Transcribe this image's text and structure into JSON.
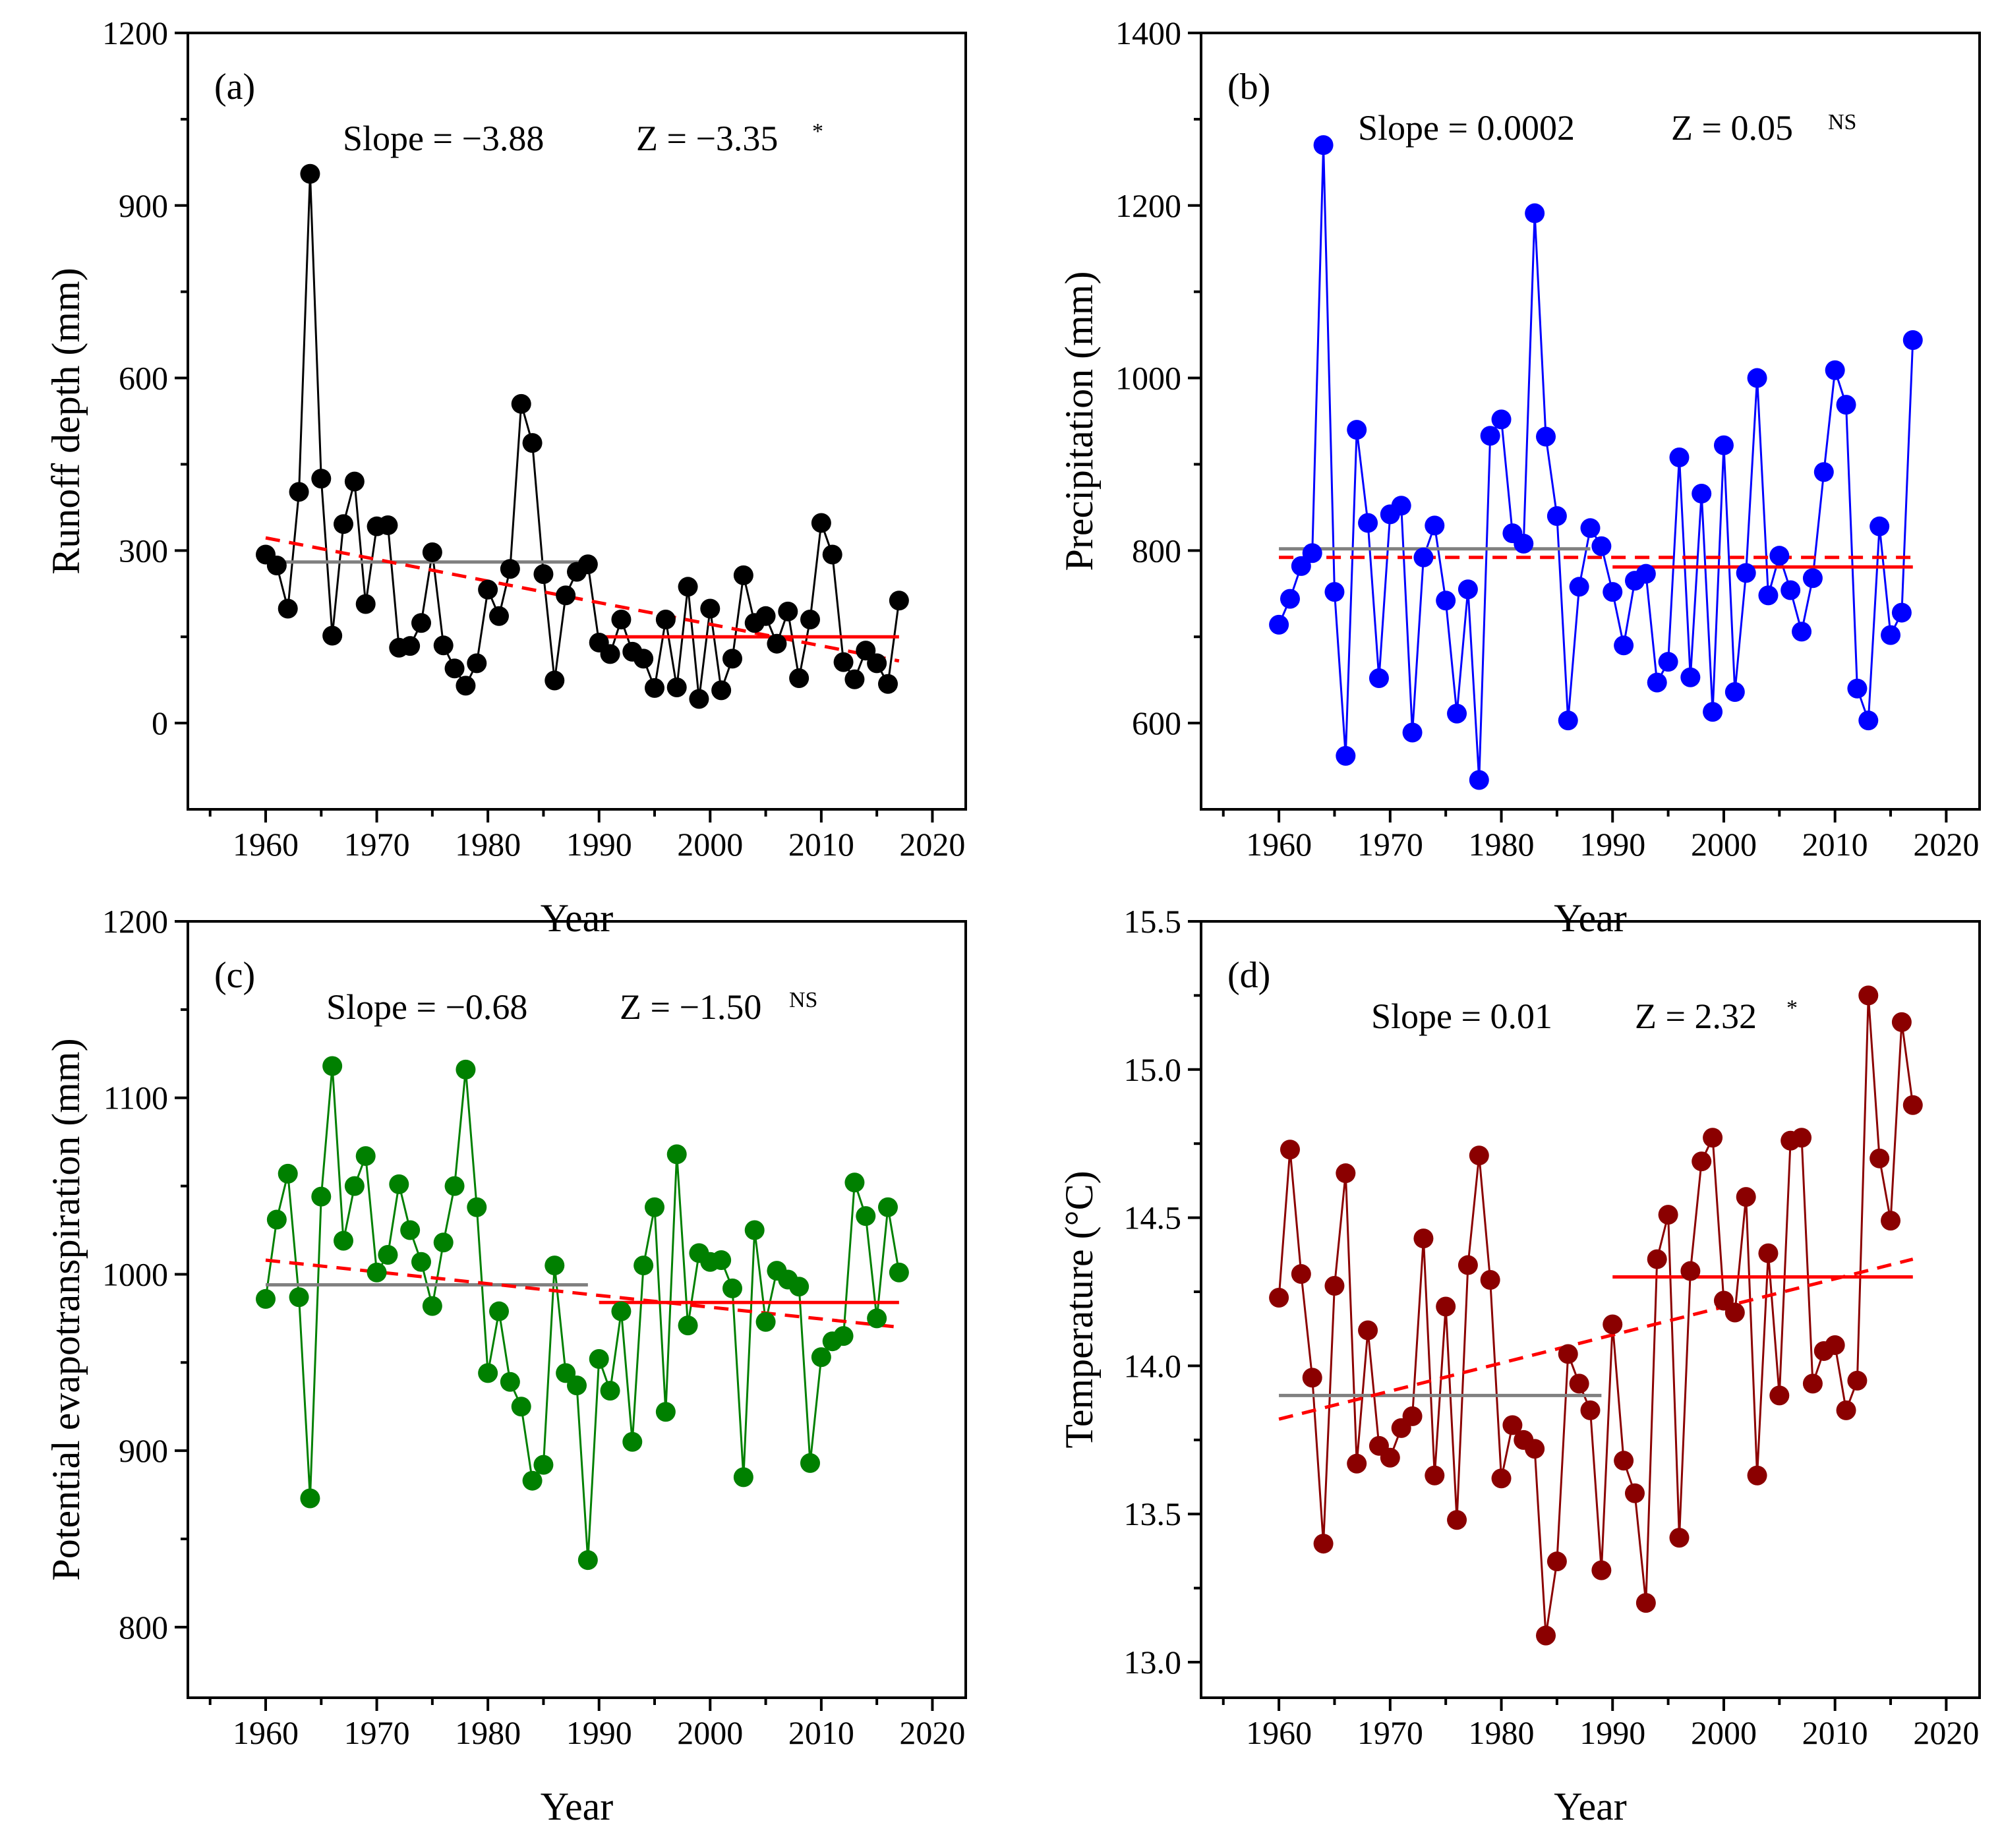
{
  "figure": {
    "xlabel_shared": "Year"
  },
  "chart_data": [
    {
      "id": "a",
      "type": "line",
      "panel_label": "(a)",
      "ylabel": "Runoff depth (mm)",
      "xlabel": "Year",
      "xlim": [
        1953,
        2023
      ],
      "ylim": [
        -150,
        1200
      ],
      "xticks": [
        1960,
        1970,
        1980,
        1990,
        2000,
        2010,
        2020
      ],
      "yticks": [
        0,
        300,
        600,
        900,
        1200
      ],
      "color": "#000000",
      "stats": {
        "slope_text": "Slope = −3.88",
        "z_text": "Z = −3.35",
        "z_sup": "*"
      },
      "series": [
        {
          "name": "Runoff depth",
          "x": [
            1960,
            1961,
            1962,
            1963,
            1964,
            1965,
            1966,
            1967,
            1968,
            1969,
            1970,
            1971,
            1972,
            1973,
            1974,
            1975,
            1976,
            1977,
            1978,
            1979,
            1980,
            1981,
            1982,
            1983,
            1984,
            1985,
            1986,
            1987,
            1988,
            1989,
            1990,
            1991,
            1992,
            1993,
            1994,
            1995,
            1996,
            1997,
            1998,
            1999,
            2000,
            2001,
            2002,
            2003,
            2004,
            2005,
            2006,
            2007,
            2008,
            2009,
            2010,
            2011,
            2012,
            2013,
            2014,
            2015,
            2016,
            2017
          ],
          "values": [
            293,
            274,
            199,
            402,
            955,
            425,
            152,
            346,
            420,
            207,
            342,
            344,
            131,
            134,
            174,
            297,
            135,
            95,
            65,
            104,
            232,
            186,
            268,
            555,
            487,
            259,
            74,
            222,
            263,
            276,
            140,
            120,
            180,
            124,
            112,
            61,
            180,
            62,
            237,
            42,
            199,
            57,
            112,
            257,
            174,
            186,
            138,
            194,
            78,
            180,
            348,
            293,
            106,
            76,
            126,
            104,
            68,
            213
          ]
        }
      ],
      "mean_lines": [
        {
          "name": "1960-1989 mean",
          "x": [
            1960,
            1989
          ],
          "y": 280,
          "color": "#808080"
        },
        {
          "name": "1990-2017 mean",
          "x": [
            1990,
            2017
          ],
          "y": 150,
          "color": "#ff0000"
        }
      ],
      "trend_line": {
        "name": "Linear trend",
        "x": [
          1960,
          2017
        ],
        "y": [
          322,
          108
        ],
        "color": "#ff0000",
        "dashed": true
      }
    },
    {
      "id": "b",
      "type": "line",
      "panel_label": "(b)",
      "ylabel": "Precipitation (mm)",
      "xlabel": "Year",
      "xlim": [
        1953,
        2023
      ],
      "ylim": [
        500,
        1400
      ],
      "xticks": [
        1960,
        1970,
        1980,
        1990,
        2000,
        2010,
        2020
      ],
      "yticks": [
        600,
        800,
        1000,
        1200,
        1400
      ],
      "color": "#0000ff",
      "stats": {
        "slope_text": "Slope = 0.0002",
        "z_text": "Z = 0.05",
        "z_sup": "NS"
      },
      "series": [
        {
          "name": "Precipitation",
          "x": [
            1960,
            1961,
            1962,
            1963,
            1964,
            1965,
            1966,
            1967,
            1968,
            1969,
            1970,
            1971,
            1972,
            1973,
            1974,
            1975,
            1976,
            1977,
            1978,
            1979,
            1980,
            1981,
            1982,
            1983,
            1984,
            1985,
            1986,
            1987,
            1988,
            1989,
            1990,
            1991,
            1992,
            1993,
            1994,
            1995,
            1996,
            1997,
            1998,
            1999,
            2000,
            2001,
            2002,
            2003,
            2004,
            2005,
            2006,
            2007,
            2008,
            2009,
            2010,
            2011,
            2012,
            2013,
            2014,
            2015,
            2016,
            2017
          ],
          "values": [
            714,
            744,
            782,
            797,
            1270,
            752,
            562,
            940,
            832,
            652,
            842,
            852,
            589,
            792,
            829,
            742,
            611,
            755,
            534,
            933,
            952,
            820,
            808,
            1191,
            932,
            840,
            603,
            758,
            826,
            805,
            752,
            690,
            765,
            773,
            647,
            671,
            908,
            653,
            866,
            613,
            922,
            636,
            774,
            1000,
            748,
            794,
            754,
            706,
            768,
            891,
            1009,
            969,
            640,
            603,
            828,
            702,
            728,
            1044
          ]
        }
      ],
      "mean_lines": [
        {
          "name": "1960-1989 mean",
          "x": [
            1960,
            1988
          ],
          "y": 802,
          "color": "#808080"
        },
        {
          "name": "1990-2017 mean",
          "x": [
            1990,
            2017
          ],
          "y": 781,
          "color": "#ff0000"
        }
      ],
      "trend_line": {
        "name": "Linear trend",
        "x": [
          1960,
          2017
        ],
        "y": [
          792,
          792
        ],
        "color": "#ff0000",
        "dashed": true
      }
    },
    {
      "id": "c",
      "type": "line",
      "panel_label": "(c)",
      "ylabel": "Potential evapotranspiration (mm)",
      "xlabel": "Year",
      "xlim": [
        1953,
        2023
      ],
      "ylim": [
        760,
        1200
      ],
      "xticks": [
        1960,
        1970,
        1980,
        1990,
        2000,
        2010,
        2020
      ],
      "yticks": [
        800,
        900,
        1000,
        1100,
        1200
      ],
      "color": "#008000",
      "stats": {
        "slope_text": "Slope = −0.68",
        "z_text": "Z = −1.50",
        "z_sup": "NS"
      },
      "series": [
        {
          "name": "Potential evapotranspiration",
          "x": [
            1960,
            1961,
            1962,
            1963,
            1964,
            1965,
            1966,
            1967,
            1968,
            1969,
            1970,
            1971,
            1972,
            1973,
            1974,
            1975,
            1976,
            1977,
            1978,
            1979,
            1980,
            1981,
            1982,
            1983,
            1984,
            1985,
            1986,
            1987,
            1988,
            1989,
            1990,
            1991,
            1992,
            1993,
            1994,
            1995,
            1996,
            1997,
            1998,
            1999,
            2000,
            2001,
            2002,
            2003,
            2004,
            2005,
            2006,
            2007,
            2008,
            2009,
            2010,
            2011,
            2012,
            2013,
            2014,
            2015,
            2016,
            2017
          ],
          "values": [
            986,
            1031,
            1057,
            987,
            873,
            1044,
            1118,
            1019,
            1050,
            1067,
            1001,
            1011,
            1051,
            1025,
            1007,
            982,
            1018,
            1050,
            1116,
            1038,
            944,
            979,
            939,
            925,
            883,
            892,
            1005,
            944,
            937,
            838,
            952,
            934,
            979,
            905,
            1005,
            1038,
            922,
            1068,
            971,
            1012,
            1007,
            1008,
            992,
            885,
            1025,
            973,
            1002,
            997,
            993,
            893,
            953,
            962,
            965,
            1052,
            1033,
            975,
            1038,
            1001
          ]
        }
      ],
      "mean_lines": [
        {
          "name": "1960-1989 mean",
          "x": [
            1960,
            1989
          ],
          "y": 994,
          "color": "#808080"
        },
        {
          "name": "1990-2017 mean",
          "x": [
            1990,
            2017
          ],
          "y": 984,
          "color": "#ff0000"
        }
      ],
      "trend_line": {
        "name": "Linear trend",
        "x": [
          1960,
          2017
        ],
        "y": [
          1008,
          970
        ],
        "color": "#ff0000",
        "dashed": true
      }
    },
    {
      "id": "d",
      "type": "line",
      "panel_label": "(d)",
      "ylabel": "Temperature (°C)",
      "xlabel": "Year",
      "xlim": [
        1953,
        2023
      ],
      "ylim": [
        12.88,
        15.5
      ],
      "xticks": [
        1960,
        1970,
        1980,
        1990,
        2000,
        2010,
        2020
      ],
      "yticks": [
        13.0,
        13.5,
        14.0,
        14.5,
        15.0,
        15.5
      ],
      "ytick_format": 1,
      "color": "#8b0000",
      "stats": {
        "slope_text": "Slope = 0.01",
        "z_text": "Z = 2.32",
        "z_sup": "*"
      },
      "series": [
        {
          "name": "Temperature",
          "x": [
            1960,
            1961,
            1962,
            1963,
            1964,
            1965,
            1966,
            1967,
            1968,
            1969,
            1970,
            1971,
            1972,
            1973,
            1974,
            1975,
            1976,
            1977,
            1978,
            1979,
            1980,
            1981,
            1982,
            1983,
            1984,
            1985,
            1986,
            1987,
            1988,
            1989,
            1990,
            1991,
            1992,
            1993,
            1994,
            1995,
            1996,
            1997,
            1998,
            1999,
            2000,
            2001,
            2002,
            2003,
            2004,
            2005,
            2006,
            2007,
            2008,
            2009,
            2010,
            2011,
            2012,
            2013,
            2014,
            2015,
            2016,
            2017
          ],
          "values": [
            14.23,
            14.73,
            14.31,
            13.96,
            13.4,
            14.27,
            14.65,
            13.67,
            14.12,
            13.73,
            13.69,
            13.79,
            13.83,
            14.43,
            13.63,
            14.2,
            13.48,
            14.34,
            14.71,
            14.29,
            13.62,
            13.8,
            13.75,
            13.72,
            13.09,
            13.34,
            14.04,
            13.94,
            13.85,
            13.31,
            14.14,
            13.68,
            13.57,
            13.2,
            14.36,
            14.51,
            13.42,
            14.32,
            14.69,
            14.77,
            14.22,
            14.18,
            14.57,
            13.63,
            14.38,
            13.9,
            14.76,
            14.77,
            13.94,
            14.05,
            14.07,
            13.85,
            13.95,
            15.25,
            14.7,
            14.49,
            15.16,
            14.88
          ]
        }
      ],
      "mean_lines": [
        {
          "name": "1960-1989 mean",
          "x": [
            1960,
            1989
          ],
          "y": 13.9,
          "color": "#808080"
        },
        {
          "name": "1990-2017 mean",
          "x": [
            1990,
            2017
          ],
          "y": 14.3,
          "color": "#ff0000"
        }
      ],
      "trend_line": {
        "name": "Linear trend",
        "x": [
          1960,
          2017
        ],
        "y": [
          13.82,
          14.36
        ],
        "color": "#ff0000",
        "dashed": true
      }
    }
  ]
}
